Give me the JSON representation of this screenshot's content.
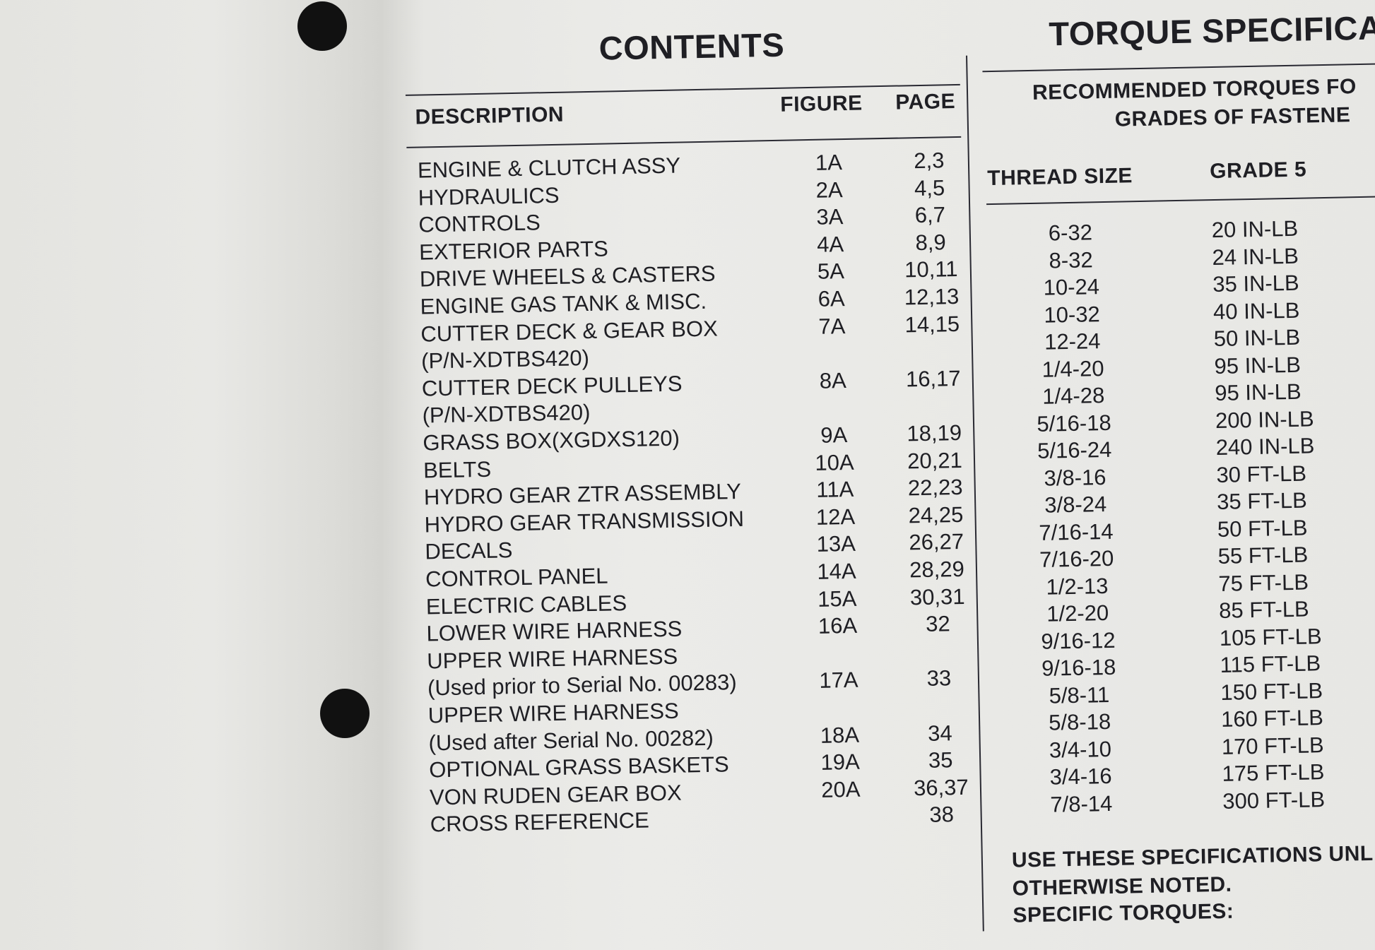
{
  "contents": {
    "title": "CONTENTS",
    "headers": {
      "description": "DESCRIPTION",
      "figure": "FIGURE",
      "page": "PAGE"
    },
    "rows": [
      {
        "description": "ENGINE & CLUTCH ASSY",
        "figure": "1A",
        "page": "2,3"
      },
      {
        "description": "HYDRAULICS",
        "figure": "2A",
        "page": "4,5"
      },
      {
        "description": "CONTROLS",
        "figure": "3A",
        "page": "6,7"
      },
      {
        "description": "EXTERIOR PARTS",
        "figure": "4A",
        "page": "8,9"
      },
      {
        "description": "DRIVE WHEELS & CASTERS",
        "figure": "5A",
        "page": "10,11"
      },
      {
        "description": "ENGINE GAS TANK & MISC.",
        "figure": "6A",
        "page": "12,13"
      },
      {
        "description": "CUTTER DECK & GEAR BOX",
        "figure": "7A",
        "page": "14,15"
      },
      {
        "description": "(P/N-XDTBS420)",
        "figure": "",
        "page": ""
      },
      {
        "description": "CUTTER DECK PULLEYS",
        "figure": "8A",
        "page": "16,17"
      },
      {
        "description": "(P/N-XDTBS420)",
        "figure": "",
        "page": ""
      },
      {
        "description": "GRASS BOX(XGDXS120)",
        "figure": "9A",
        "page": "18,19"
      },
      {
        "description": "BELTS",
        "figure": "10A",
        "page": "20,21"
      },
      {
        "description": "HYDRO GEAR ZTR ASSEMBLY",
        "figure": "11A",
        "page": "22,23"
      },
      {
        "description": "HYDRO GEAR TRANSMISSION",
        "figure": "12A",
        "page": "24,25"
      },
      {
        "description": "DECALS",
        "figure": "13A",
        "page": "26,27"
      },
      {
        "description": "CONTROL PANEL",
        "figure": "14A",
        "page": "28,29"
      },
      {
        "description": "ELECTRIC CABLES",
        "figure": "15A",
        "page": "30,31"
      },
      {
        "description": "LOWER WIRE HARNESS",
        "figure": "16A",
        "page": "32"
      },
      {
        "description": "UPPER WIRE HARNESS",
        "figure": "",
        "page": ""
      },
      {
        "description": "(Used prior to Serial No. 00283)",
        "figure": "17A",
        "page": "33"
      },
      {
        "description": "UPPER WIRE HARNESS",
        "figure": "",
        "page": ""
      },
      {
        "description": "(Used after Serial No. 00282)",
        "figure": "18A",
        "page": "34"
      },
      {
        "description": "OPTIONAL GRASS BASKETS",
        "figure": "19A",
        "page": "35"
      },
      {
        "description": "VON RUDEN GEAR BOX",
        "figure": "20A",
        "page": "36,37"
      },
      {
        "description": "CROSS REFERENCE",
        "figure": "",
        "page": "38"
      }
    ]
  },
  "torque": {
    "title": "TORQUE SPECIFICAT",
    "subtitle_line1": "RECOMMENDED TORQUES FO",
    "subtitle_line2": "GRADES OF FASTENE",
    "headers": {
      "thread_size": "THREAD SIZE",
      "grade5": "GRADE 5"
    },
    "rows": [
      {
        "thread": "6-32",
        "grade5": "20 IN-LB"
      },
      {
        "thread": "8-32",
        "grade5": "24 IN-LB"
      },
      {
        "thread": "10-24",
        "grade5": "35 IN-LB"
      },
      {
        "thread": "10-32",
        "grade5": "40 IN-LB"
      },
      {
        "thread": "12-24",
        "grade5": "50 IN-LB"
      },
      {
        "thread": "1/4-20",
        "grade5": "95 IN-LB"
      },
      {
        "thread": "1/4-28",
        "grade5": "95 IN-LB"
      },
      {
        "thread": "5/16-18",
        "grade5": "200 IN-LB"
      },
      {
        "thread": "5/16-24",
        "grade5": "240 IN-LB"
      },
      {
        "thread": "3/8-16",
        "grade5": "30 FT-LB"
      },
      {
        "thread": "3/8-24",
        "grade5": "35 FT-LB"
      },
      {
        "thread": "7/16-14",
        "grade5": "50 FT-LB"
      },
      {
        "thread": "7/16-20",
        "grade5": "55 FT-LB"
      },
      {
        "thread": "1/2-13",
        "grade5": "75 FT-LB"
      },
      {
        "thread": "1/2-20",
        "grade5": "85 FT-LB"
      },
      {
        "thread": "9/16-12",
        "grade5": "105 FT-LB"
      },
      {
        "thread": "9/16-18",
        "grade5": "115 FT-LB"
      },
      {
        "thread": "5/8-11",
        "grade5": "150 FT-LB"
      },
      {
        "thread": "5/8-18",
        "grade5": "160 FT-LB"
      },
      {
        "thread": "3/4-10",
        "grade5": "170 FT-LB"
      },
      {
        "thread": "3/4-16",
        "grade5": "175 FT-LB"
      },
      {
        "thread": "7/8-14",
        "grade5": "300 FT-LB"
      }
    ],
    "note_line1": "USE THESE SPECIFICATIONS UNL",
    "note_line2": "OTHERWISE NOTED.",
    "note_line3": "SPECIFIC TORQUES:"
  }
}
